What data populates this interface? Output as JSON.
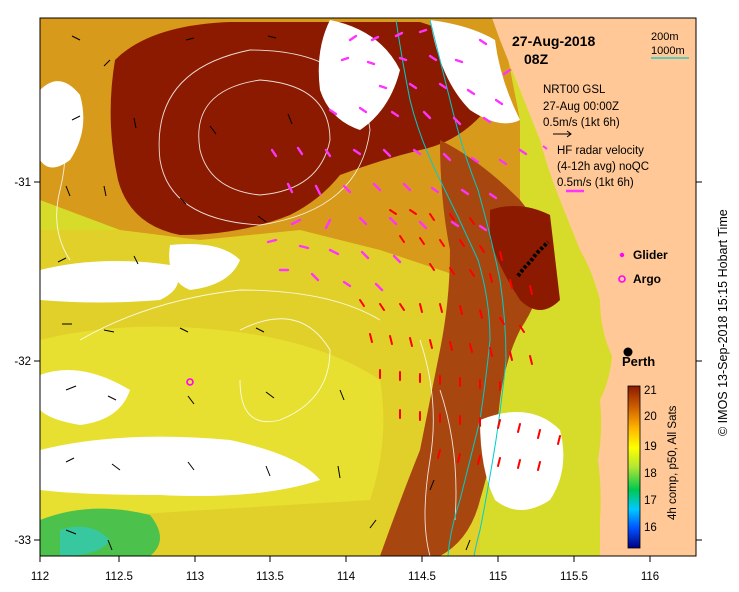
{
  "map": {
    "date_line": "27-Aug-2018",
    "time_line": "08Z",
    "scale_200": "200m",
    "scale_1000": "1000m",
    "gsl_lines": [
      "NRT00 GSL",
      "27-Aug 00:00Z",
      "0.5m/s (1kt 6h)"
    ],
    "hf_lines": [
      "HF radar velocity",
      "(4-12h avg) noQC",
      "0.5m/s (1kt 6h)"
    ],
    "glider_label": "Glider",
    "argo_label": "Argo",
    "city_label": "Perth",
    "colorbar_label": "4h comp, p50, All Sats",
    "credit": "© IMOS 13-Sep-2018 15:15 Hobart Time",
    "x_ticks": [
      "112",
      "112.5",
      "113",
      "113.5",
      "114",
      "114.5",
      "115",
      "115.5",
      "116"
    ],
    "y_ticks": [
      "-31",
      "-32",
      "-33"
    ],
    "colorbar_ticks": [
      "21",
      "20",
      "19",
      "18",
      "17",
      "16"
    ],
    "colors": {
      "land": "#ffc896",
      "hf_arrow": "#ff33ff",
      "model_arrow": "#ff0000",
      "contour": "#00cccc",
      "glider": "#ff00ff",
      "warm": "#8b1a00",
      "cool": "#c8d82a"
    }
  }
}
